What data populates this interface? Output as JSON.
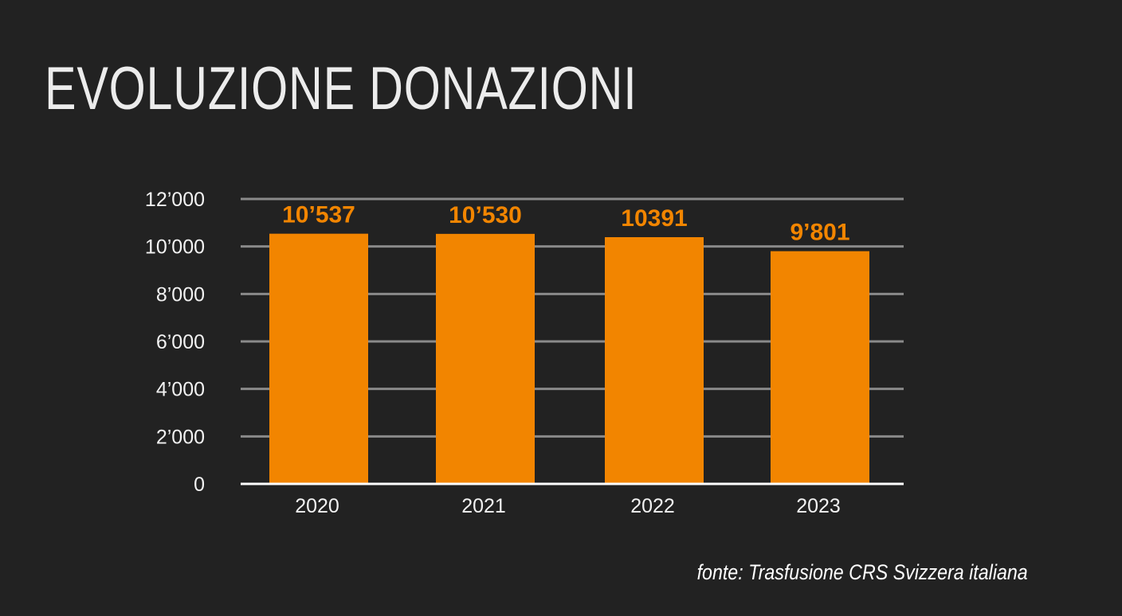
{
  "header": {
    "title": "EVOLUZIONE DONAZIONI"
  },
  "footer": {
    "source": "fonte: Trasfusione CRS Svizzera italiana"
  },
  "colors": {
    "background": "#222222",
    "bar": "#f28500",
    "grid": "#8a8a8a",
    "baseline": "#ffffff",
    "text": "#f2f2f2"
  },
  "chart_data": {
    "type": "bar",
    "title": "EVOLUZIONE DONAZIONI",
    "xlabel": "",
    "ylabel": "",
    "categories": [
      "2020",
      "2021",
      "2022",
      "2023"
    ],
    "values": [
      10537,
      10530,
      10391,
      9801
    ],
    "value_labels": [
      "10’537",
      "10’530",
      "10391",
      "9’801"
    ],
    "yticks": [
      0,
      2000,
      4000,
      6000,
      8000,
      10000,
      12000
    ],
    "ytick_labels": [
      "0",
      "2’000",
      "4’000",
      "6’000",
      "8’000",
      "10’000",
      "12’000"
    ],
    "ylim": [
      0,
      12000
    ],
    "grid": true,
    "legend": "none"
  }
}
